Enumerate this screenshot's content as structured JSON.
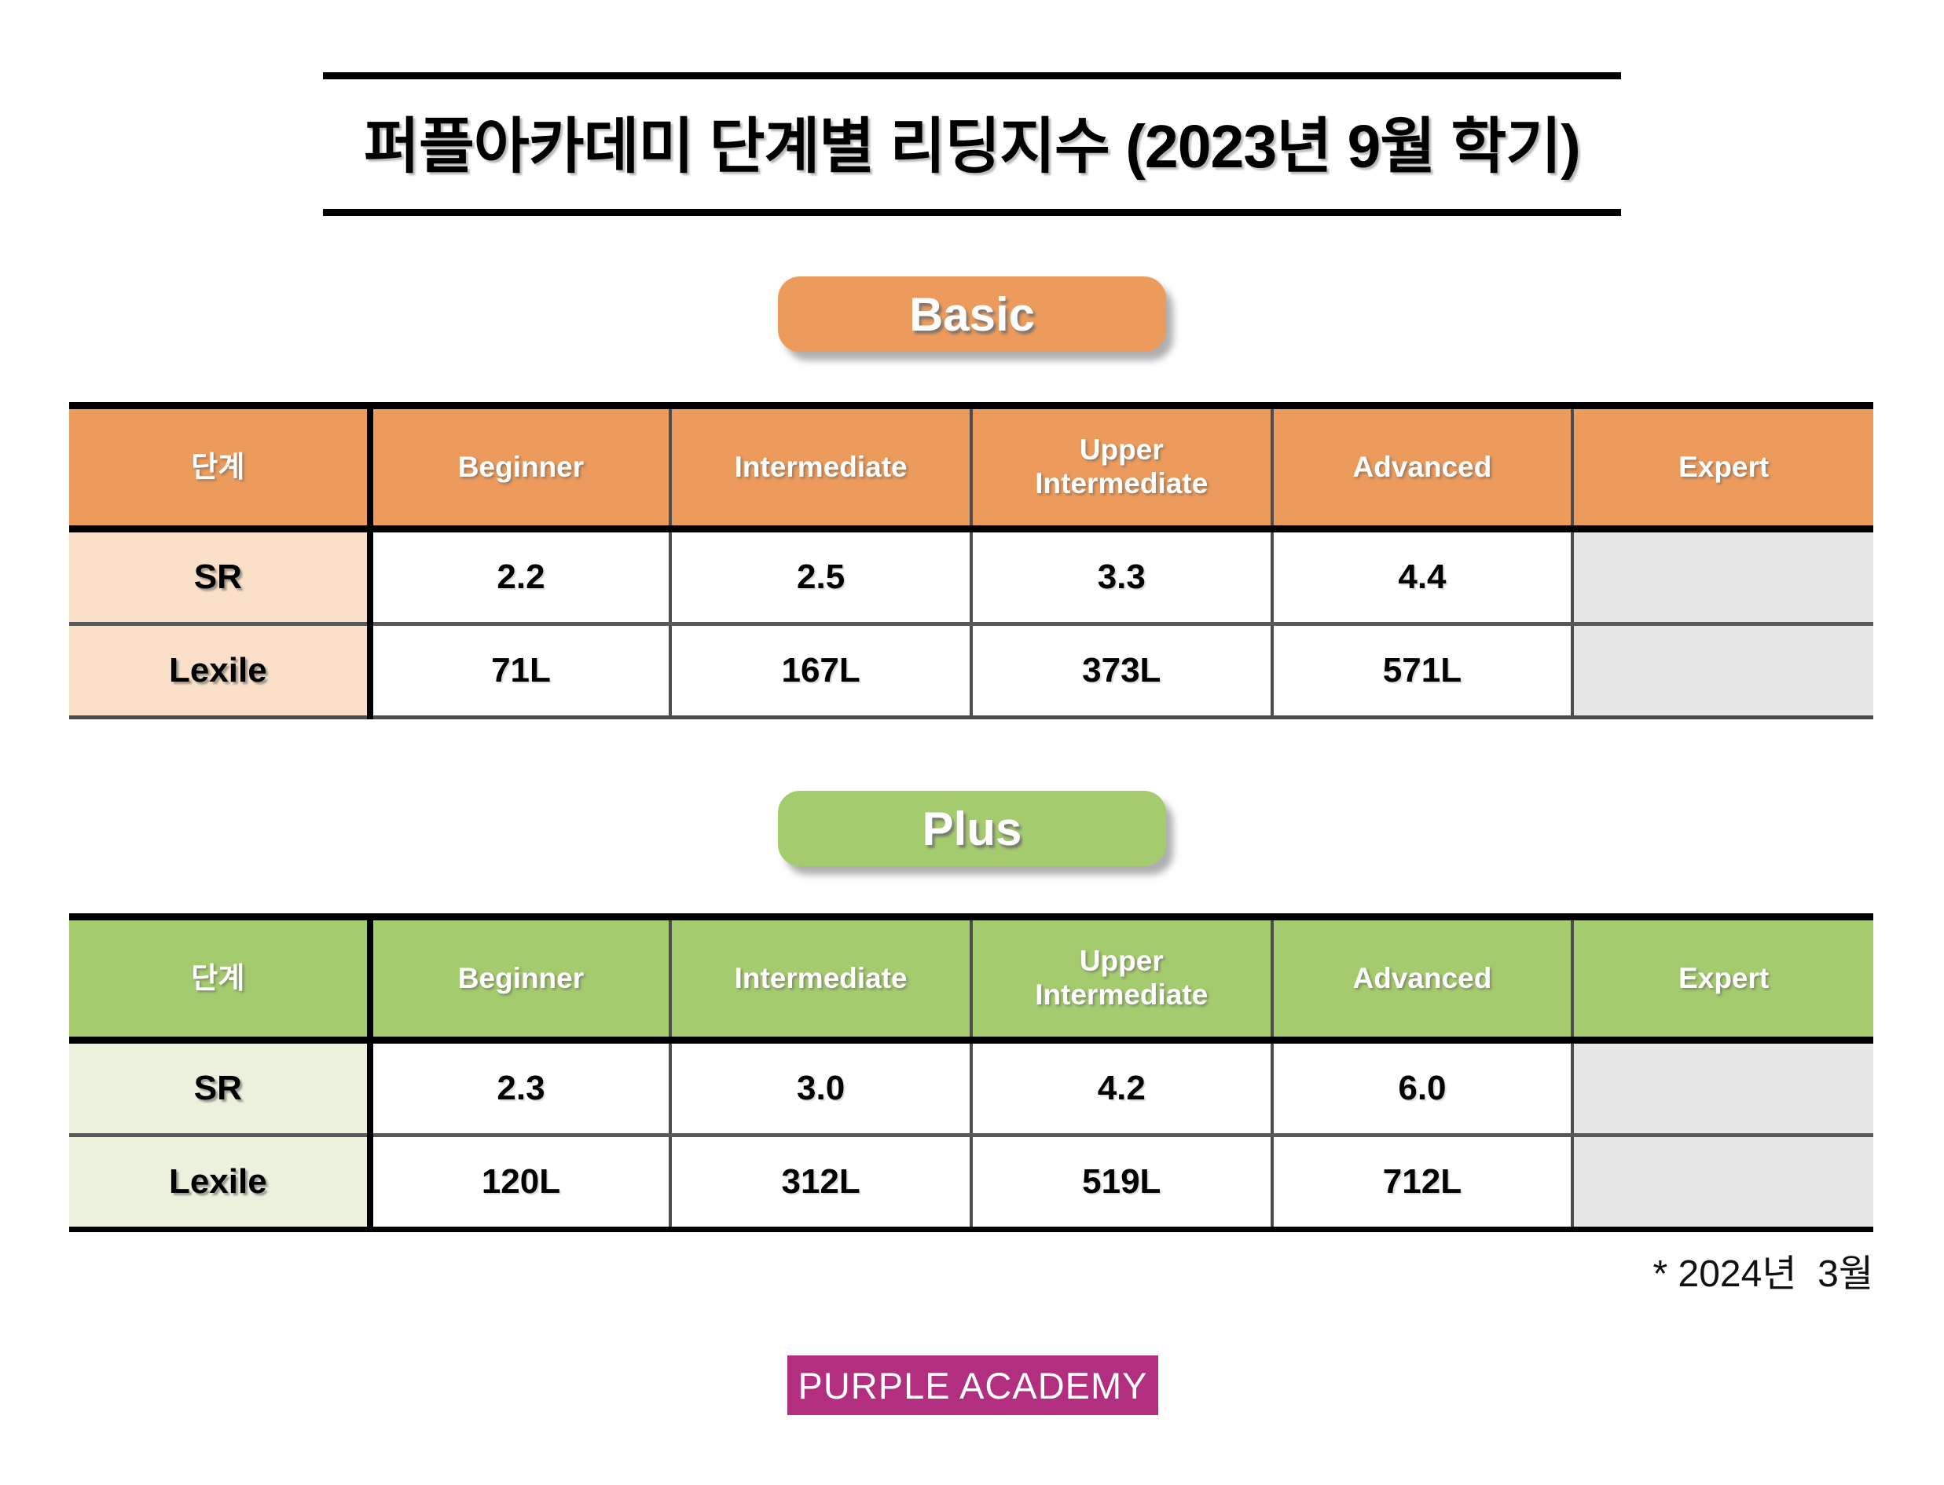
{
  "page": {
    "title": "퍼플아카데미 단계별 리딩지수 (2023년 9월 학기)",
    "footnote": "* 2024년  3월",
    "logo_text": "PURPLE ACADEMY"
  },
  "colors": {
    "basic_accent": "#EC9B5C",
    "basic_label_bg": "#FAE0C8",
    "plus_accent": "#A5CB6F",
    "plus_label_bg": "#EBF1DD",
    "expert_cell_bg": "#E7E7E7",
    "logo_bg": "#B22E7E",
    "border_black": "#000000",
    "border_gray": "#595959"
  },
  "tables": [
    {
      "badge": "Basic",
      "columns": [
        "단계",
        "Beginner",
        "Intermediate",
        "Upper\nIntermediate",
        "Advanced",
        "Expert"
      ],
      "rows": [
        {
          "label": "SR",
          "values": [
            "2.2",
            "2.5",
            "3.3",
            "4.4",
            ""
          ]
        },
        {
          "label": "Lexile",
          "values": [
            "71L",
            "167L",
            "373L",
            "571L",
            ""
          ]
        }
      ]
    },
    {
      "badge": "Plus",
      "columns": [
        "단계",
        "Beginner",
        "Intermediate",
        "Upper\nIntermediate",
        "Advanced",
        "Expert"
      ],
      "rows": [
        {
          "label": "SR",
          "values": [
            "2.3",
            "3.0",
            "4.2",
            "6.0",
            ""
          ]
        },
        {
          "label": "Lexile",
          "values": [
            "120L",
            "312L",
            "519L",
            "712L",
            ""
          ]
        }
      ]
    }
  ]
}
